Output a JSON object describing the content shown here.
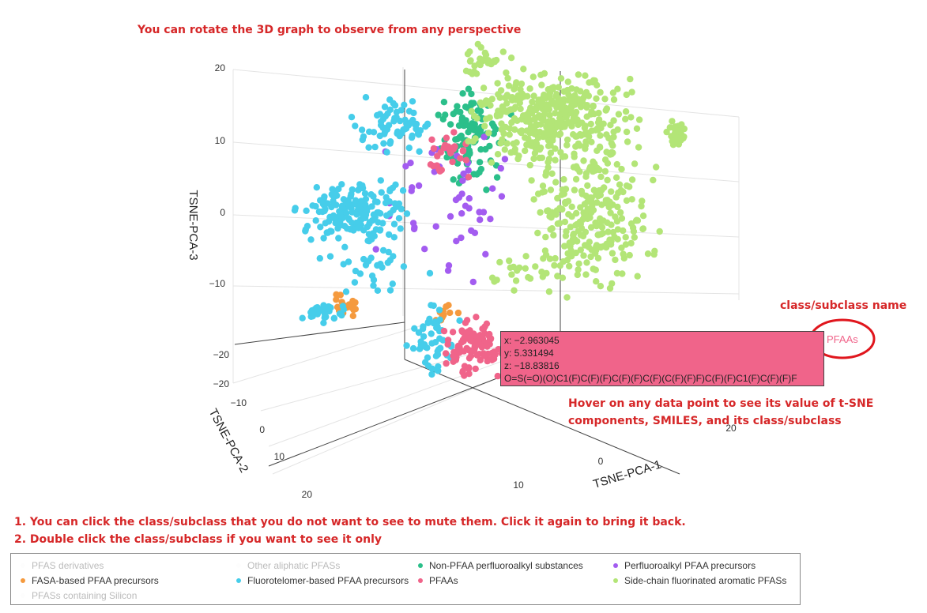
{
  "annotations": {
    "rotate_note": "You can rotate the 3D graph to observe from any perspective",
    "class_name_note": "class/subclass name",
    "hover_note_1": "Hover on any data point to see its value of t-SNE",
    "hover_note_2": "components, SMILES, and its class/subclass",
    "click_note_1": "1. You can click the class/subclass that you do not want to see to mute them. Click it again to bring it back.",
    "click_note_2": "2. Double click the class/subclass if you want to see it only"
  },
  "hover": {
    "x": "x: −2.963045",
    "y": "y: 5.331494",
    "z": "z: −18.83816",
    "smiles": "O=S(=O)(O)C1(F)C(F)(F)C(F)(F)C(F)(C(F)(F)F)C(F)(F)C1(F)C(F)(F)F",
    "class_name": "PFAAs"
  },
  "chart_data": {
    "type": "scatter",
    "title": "",
    "xlabel": "TSNE-PCA-1",
    "ylabel": "TSNE-PCA-2",
    "zlabel": "TSNE-PCA-3",
    "z_ticks": [
      "20",
      "10",
      "0",
      "−10",
      "−20"
    ],
    "y_ticks": [
      "−20",
      "−10",
      "0",
      "10",
      "20"
    ],
    "x_ticks": [
      "0",
      "10",
      "20"
    ],
    "legend_position": "bottom",
    "series": [
      {
        "name": "PFAS derivatives",
        "color": "#f0f0f0",
        "muted": true,
        "cluster": "none"
      },
      {
        "name": "Other aliphatic PFASs",
        "color": "#f0f0f0",
        "muted": true,
        "cluster": "none"
      },
      {
        "name": "Non-PFAA perfluoroalkyl substances",
        "color": "#2bbf8a",
        "muted": false,
        "cluster": "center-top"
      },
      {
        "name": "Perfluoroalkyl PFAA precursors",
        "color": "#a35cf0",
        "muted": false,
        "cluster": "scattered-center"
      },
      {
        "name": "FASA-based PFAA precursors",
        "color": "#f59a3e",
        "muted": false,
        "cluster": "left-low"
      },
      {
        "name": "Fluorotelomer-based PFAA precursors",
        "color": "#46cdea",
        "muted": false,
        "cluster": "left"
      },
      {
        "name": "PFAAs",
        "color": "#f0648a",
        "muted": false,
        "cluster": "bottom-center"
      },
      {
        "name": "Side-chain fluorinated aromatic PFASs",
        "color": "#b3e577",
        "muted": false,
        "cluster": "right"
      },
      {
        "name": "PFASs containing Silicon",
        "color": "#f0f0f0",
        "muted": true,
        "cluster": "none"
      }
    ]
  }
}
